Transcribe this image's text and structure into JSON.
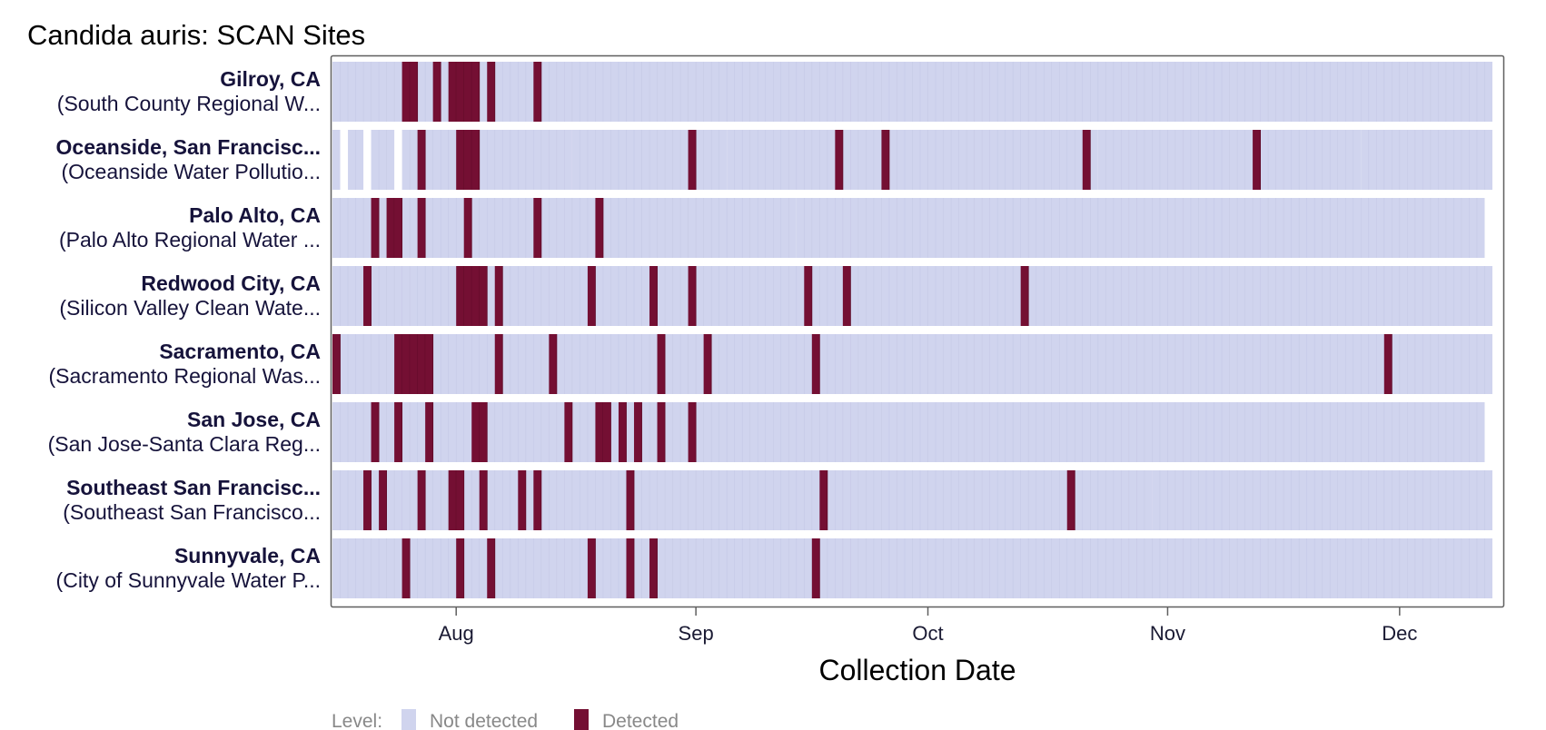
{
  "chart_data": {
    "type": "heatmap",
    "title": "Candida auris: SCAN Sites",
    "xlabel": "Collection Date",
    "x_domain": [
      "2023-07-16",
      "2023-12-12"
    ],
    "x_ticks": [
      {
        "date": "2023-08-01",
        "label": "Aug"
      },
      {
        "date": "2023-09-01",
        "label": "Sep"
      },
      {
        "date": "2023-10-01",
        "label": "Oct"
      },
      {
        "date": "2023-11-01",
        "label": "Nov"
      },
      {
        "date": "2023-12-01",
        "label": "Dec"
      }
    ],
    "levels": [
      "Not detected",
      "Detected"
    ],
    "colors": {
      "Not detected": "#d0d4ee",
      "Detected": "#740f33"
    },
    "legend": {
      "title": "Level:",
      "position": "bottom"
    },
    "sites": [
      {
        "name": "Gilroy, CA",
        "subtitle": "(South County Regional W...",
        "sampled": [
          [
            "2023-07-16",
            "2023-12-12"
          ]
        ],
        "detected": [
          "2023-07-25",
          "2023-07-26",
          "2023-07-29",
          "2023-07-31",
          "2023-08-01",
          "2023-08-02",
          "2023-08-03",
          "2023-08-05",
          "2023-08-11"
        ]
      },
      {
        "name": "Oceanside, San Francisc...",
        "subtitle": "(Oceanside Water Pollutio...",
        "sampled": [
          [
            "2023-07-16",
            "2023-07-16"
          ],
          [
            "2023-07-18",
            "2023-07-19"
          ],
          [
            "2023-07-21",
            "2023-07-23"
          ],
          [
            "2023-07-25",
            "2023-07-27"
          ],
          [
            "2023-07-28",
            "2023-08-15"
          ],
          [
            "2023-08-16",
            "2023-09-04"
          ],
          [
            "2023-09-05",
            "2023-10-22"
          ],
          [
            "2023-10-23",
            "2023-11-25"
          ],
          [
            "2023-11-26",
            "2023-12-12"
          ]
        ],
        "detected": [
          "2023-07-27",
          "2023-08-01",
          "2023-08-02",
          "2023-08-03",
          "2023-08-31",
          "2023-09-19",
          "2023-09-25",
          "2023-10-21",
          "2023-11-12"
        ]
      },
      {
        "name": "Palo Alto, CA",
        "subtitle": "(Palo Alto Regional Water ...",
        "sampled": [
          [
            "2023-07-16",
            "2023-09-13"
          ],
          [
            "2023-09-14",
            "2023-12-11"
          ]
        ],
        "detected": [
          "2023-07-21",
          "2023-07-23",
          "2023-07-24",
          "2023-07-27",
          "2023-08-02",
          "2023-08-11",
          "2023-08-19"
        ]
      },
      {
        "name": "Redwood City, CA",
        "subtitle": "(Silicon Valley Clean Wate...",
        "sampled": [
          [
            "2023-07-16",
            "2023-12-12"
          ]
        ],
        "detected": [
          "2023-07-20",
          "2023-08-01",
          "2023-08-02",
          "2023-08-03",
          "2023-08-04",
          "2023-08-06",
          "2023-08-18",
          "2023-08-26",
          "2023-08-31",
          "2023-09-15",
          "2023-09-20",
          "2023-10-13"
        ]
      },
      {
        "name": "Sacramento, CA",
        "subtitle": "(Sacramento Regional Was...",
        "sampled": [
          [
            "2023-07-16",
            "2023-12-12"
          ]
        ],
        "detected": [
          "2023-07-16",
          "2023-07-24",
          "2023-07-25",
          "2023-07-26",
          "2023-07-27",
          "2023-07-28",
          "2023-08-06",
          "2023-08-13",
          "2023-08-27",
          "2023-09-02",
          "2023-09-16",
          "2023-11-29"
        ]
      },
      {
        "name": "San Jose, CA",
        "subtitle": "(San Jose-Santa Clara Reg...",
        "sampled": [
          [
            "2023-07-16",
            "2023-12-11"
          ]
        ],
        "detected": [
          "2023-07-21",
          "2023-07-24",
          "2023-07-28",
          "2023-08-03",
          "2023-08-04",
          "2023-08-15",
          "2023-08-19",
          "2023-08-20",
          "2023-08-22",
          "2023-08-24",
          "2023-08-27",
          "2023-08-31"
        ]
      },
      {
        "name": "Southeast San Francisc...",
        "subtitle": "(Southeast San Francisco...",
        "sampled": [
          [
            "2023-07-16",
            "2023-10-29"
          ],
          [
            "2023-10-30",
            "2023-12-12"
          ]
        ],
        "detected": [
          "2023-07-20",
          "2023-07-22",
          "2023-07-27",
          "2023-07-31",
          "2023-08-01",
          "2023-08-04",
          "2023-08-09",
          "2023-08-11",
          "2023-08-23",
          "2023-09-17",
          "2023-10-19"
        ]
      },
      {
        "name": "Sunnyvale, CA",
        "subtitle": "(City of Sunnyvale Water P...",
        "sampled": [
          [
            "2023-07-16",
            "2023-12-12"
          ]
        ],
        "detected": [
          "2023-07-25",
          "2023-08-01",
          "2023-08-05",
          "2023-08-18",
          "2023-08-23",
          "2023-08-26",
          "2023-09-16"
        ]
      }
    ]
  }
}
